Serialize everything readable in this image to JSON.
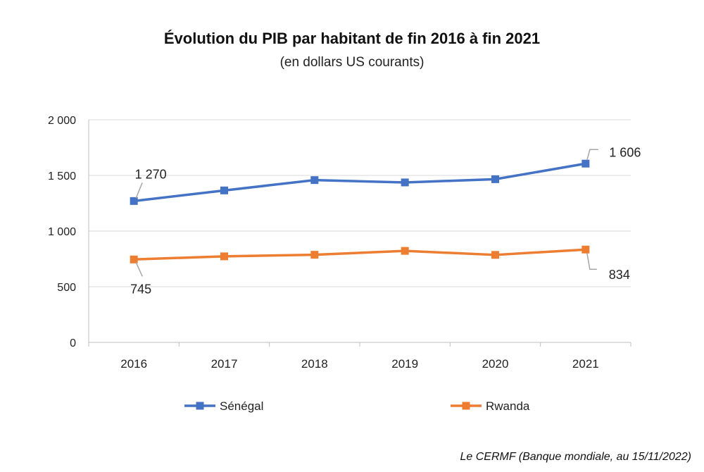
{
  "chart_data": {
    "type": "line",
    "title": "Évolution du PIB par habitant de fin 2016 à fin 2021",
    "subtitle": "(en dollars US courants)",
    "categories": [
      "2016",
      "2017",
      "2018",
      "2019",
      "2020",
      "2021"
    ],
    "ylim": [
      0,
      2000
    ],
    "yticks": [
      0,
      500,
      1000,
      1500,
      2000
    ],
    "ytick_labels": [
      "0",
      "500",
      "1 000",
      "1 500",
      "2 000"
    ],
    "grid": true,
    "legend_position": "bottom",
    "series": [
      {
        "name": "Sénégal",
        "color": "#4472C4",
        "values": [
          1270,
          1365,
          1458,
          1437,
          1466,
          1606
        ],
        "labels": [
          {
            "index": 0,
            "text": "1 270"
          },
          {
            "index": 5,
            "text": "1 606"
          }
        ]
      },
      {
        "name": "Rwanda",
        "color": "#ED7D31",
        "values": [
          745,
          773,
          787,
          822,
          786,
          834
        ],
        "labels": [
          {
            "index": 0,
            "text": "745"
          },
          {
            "index": 5,
            "text": "834"
          }
        ]
      }
    ]
  },
  "source": "Le CERMF (Banque mondiale, au 15/11/2022)"
}
